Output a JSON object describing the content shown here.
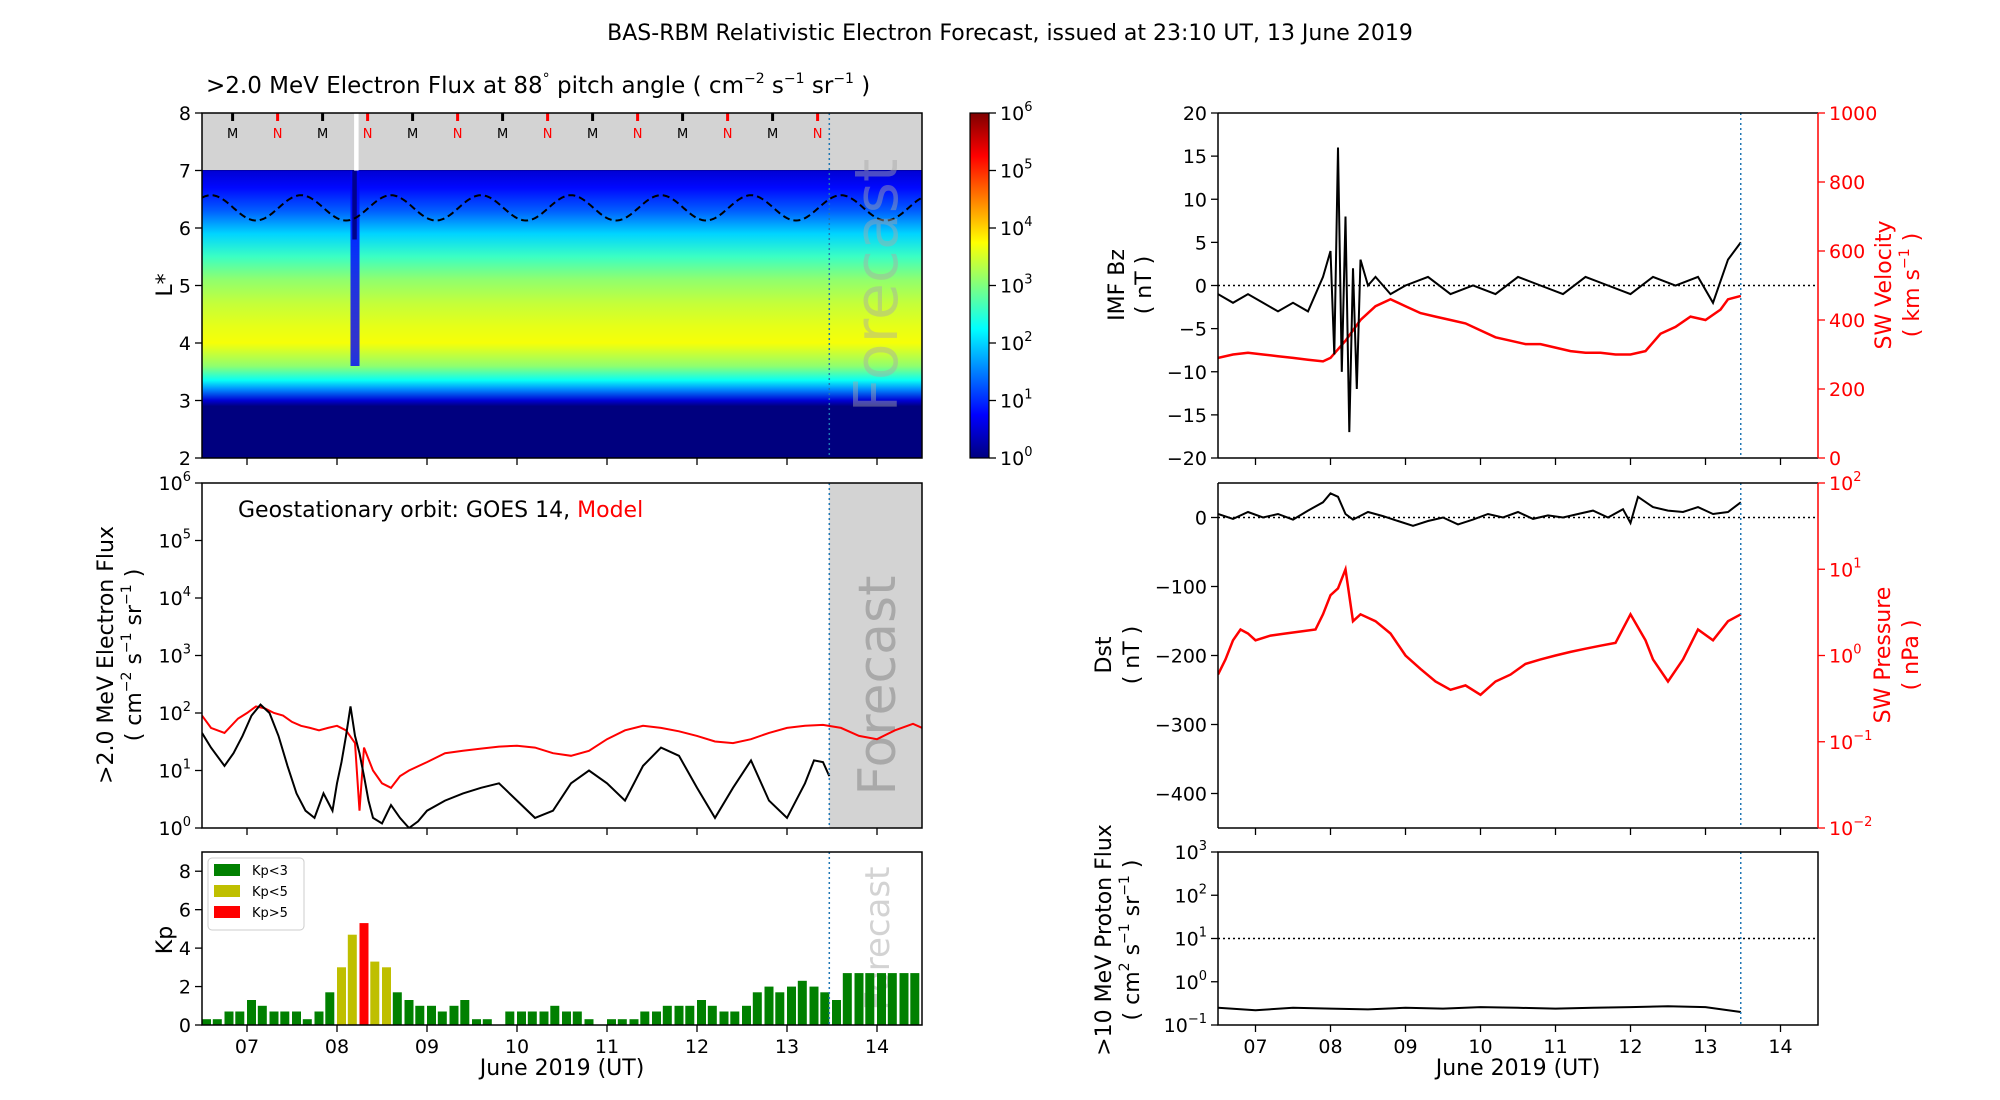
{
  "suptitle": "BAS-RBM Relativistic Electron Forecast, issued at 23:10 UT, 13 June 2019",
  "colors": {
    "black": "#000000",
    "red": "#ff0000",
    "forecast_grey": "#d3d3d3",
    "forecast_text": "#a9a9a9",
    "vline": "#1f77b4",
    "kp_low": "#008000",
    "kp_mid": "#bfbf00",
    "kp_high": "#ff0000"
  },
  "shared_x": {
    "range_days": [
      6.5,
      14.5
    ],
    "tick_labels": [
      "07",
      "08",
      "09",
      "10",
      "11",
      "12",
      "13",
      "14"
    ],
    "xlabel": "June 2019 (UT)",
    "forecast_start_day": 13.47
  },
  "chart_data": [
    {
      "id": "flux_heatmap",
      "type": "heatmap",
      "title": ">2.0 MeV Electron Flux at 88",
      "title_degree": "°",
      "title_units_open": "pitch angle ( cm",
      "title_units_exp1": "−2",
      "title_units_mid1": "s",
      "title_units_exp2": "−1",
      "title_units_mid2": "sr",
      "title_units_exp3": "−1",
      "title_units_close": ")",
      "ylabel": "L*",
      "ylim": [
        2,
        8
      ],
      "yticks": [
        "2",
        "3",
        "4",
        "5",
        "6",
        "7",
        "8"
      ],
      "forecast_label": "Forecast",
      "mlt_markers": [
        "M",
        "N",
        "M",
        "N",
        "M",
        "N",
        "M",
        "N",
        "M",
        "N",
        "M",
        "N",
        "M",
        "N"
      ],
      "dashed_line": {
        "mean_L": 6.35,
        "amplitude": 0.22,
        "period_days": 1
      },
      "colorbar": {
        "scale": "log",
        "range": [
          1,
          1000000
        ],
        "tick_mantissa": [
          "10",
          "10",
          "10",
          "10",
          "10",
          "10",
          "10"
        ],
        "tick_exponents": [
          "0",
          "1",
          "2",
          "3",
          "4",
          "5",
          "6"
        ]
      },
      "profile": {
        "L": [
          2.0,
          2.9,
          3.0,
          3.2,
          3.35,
          3.6,
          4.0,
          4.3,
          4.7,
          5.1,
          5.5,
          5.9,
          6.3,
          6.7,
          7.0
        ],
        "log_flux": [
          0.0,
          0.0,
          0.5,
          1.6,
          2.3,
          3.1,
          3.7,
          3.6,
          3.4,
          3.1,
          2.6,
          2.0,
          1.3,
          0.8,
          0.5
        ]
      }
    },
    {
      "id": "geo_flux",
      "type": "line",
      "ylabel_line1": ">2.0 MeV Electron Flux",
      "ylabel_line2_open": "( cm",
      "ylabel_exp1": "−2",
      "ylabel_mid1": "s",
      "ylabel_exp2": "−1",
      "ylabel_mid2": "sr",
      "ylabel_exp3": "−1",
      "ylabel_close": ")",
      "yscale": "log",
      "ylim": [
        1,
        1000000
      ],
      "ytick_mantissa": [
        "10",
        "10",
        "10",
        "10",
        "10",
        "10",
        "10"
      ],
      "ytick_exponents": [
        "0",
        "1",
        "2",
        "3",
        "4",
        "5",
        "6"
      ],
      "annotation_prefix": "Geostationary orbit:   GOES 14,",
      "annotation_model": "Model",
      "forecast_label": "Forecast",
      "series": [
        {
          "name": "GOES 14",
          "color": "#000000",
          "x": [
            6.5,
            6.6,
            6.75,
            6.85,
            6.95,
            7.05,
            7.15,
            7.25,
            7.35,
            7.45,
            7.55,
            7.65,
            7.75,
            7.85,
            7.95,
            8.0,
            8.05,
            8.1,
            8.15,
            8.2,
            8.25,
            8.3,
            8.35,
            8.4,
            8.5,
            8.6,
            8.7,
            8.8,
            8.9,
            9.0,
            9.2,
            9.4,
            9.6,
            9.8,
            10.0,
            10.2,
            10.4,
            10.6,
            10.8,
            11.0,
            11.2,
            11.4,
            11.6,
            11.8,
            12.0,
            12.2,
            12.4,
            12.6,
            12.8,
            13.0,
            13.2,
            13.3,
            13.4,
            13.47
          ],
          "y": [
            45,
            25,
            12,
            20,
            40,
            90,
            140,
            100,
            40,
            12,
            4,
            2,
            1.5,
            4,
            2,
            6,
            14,
            40,
            130,
            40,
            20,
            8,
            3,
            1.5,
            1.2,
            2.5,
            1.5,
            1,
            1.3,
            2,
            3,
            4,
            5,
            6,
            3,
            1.5,
            2,
            6,
            10,
            6,
            3,
            12,
            25,
            18,
            5,
            1.5,
            5,
            15,
            3,
            1.5,
            6,
            15,
            14,
            8
          ]
        },
        {
          "name": "Model",
          "color": "#ff0000",
          "x": [
            6.5,
            6.6,
            6.75,
            6.9,
            7.0,
            7.1,
            7.2,
            7.3,
            7.4,
            7.5,
            7.6,
            7.7,
            7.8,
            7.9,
            8.0,
            8.1,
            8.2,
            8.25,
            8.3,
            8.4,
            8.5,
            8.6,
            8.7,
            8.8,
            9.0,
            9.2,
            9.4,
            9.6,
            9.8,
            10.0,
            10.2,
            10.4,
            10.6,
            10.8,
            11.0,
            11.2,
            11.4,
            11.6,
            11.8,
            12.0,
            12.2,
            12.4,
            12.6,
            12.8,
            13.0,
            13.2,
            13.4,
            13.6,
            13.8,
            14.0,
            14.2,
            14.4,
            14.5
          ],
          "y": [
            90,
            55,
            45,
            80,
            100,
            130,
            120,
            100,
            90,
            70,
            60,
            55,
            50,
            55,
            60,
            50,
            30,
            2,
            25,
            10,
            6,
            5,
            8,
            10,
            14,
            20,
            22,
            24,
            26,
            27,
            25,
            20,
            18,
            22,
            35,
            50,
            60,
            55,
            48,
            40,
            32,
            30,
            35,
            45,
            55,
            60,
            62,
            55,
            40,
            35,
            50,
            65,
            55
          ]
        }
      ]
    },
    {
      "id": "kp",
      "type": "bar",
      "ylabel": "Kp",
      "ylim": [
        0,
        9
      ],
      "yticks": [
        "0",
        "2",
        "4",
        "6",
        "8"
      ],
      "forecast_label": "Forecast",
      "legend": [
        "Kp<3",
        "Kp<5",
        "Kp>5"
      ],
      "bar_width_days": 0.1,
      "x": [
        6.55,
        6.67,
        6.8,
        6.92,
        7.05,
        7.17,
        7.3,
        7.42,
        7.55,
        7.67,
        7.8,
        7.92,
        8.05,
        8.17,
        8.3,
        8.42,
        8.55,
        8.67,
        8.8,
        8.92,
        9.05,
        9.17,
        9.3,
        9.42,
        9.55,
        9.67,
        9.8,
        9.92,
        10.05,
        10.17,
        10.3,
        10.42,
        10.55,
        10.67,
        10.8,
        10.92,
        11.05,
        11.17,
        11.3,
        11.42,
        11.55,
        11.67,
        11.8,
        11.92,
        12.05,
        12.17,
        12.3,
        12.42,
        12.55,
        12.67,
        12.8,
        12.92,
        13.05,
        13.17,
        13.3,
        13.42,
        13.55,
        13.67,
        13.8,
        13.92,
        14.05,
        14.17,
        14.3,
        14.42
      ],
      "values": [
        0.3,
        0.3,
        0.7,
        0.7,
        1.3,
        1.0,
        0.7,
        0.7,
        0.7,
        0.3,
        0.7,
        1.7,
        3.0,
        4.7,
        5.3,
        3.3,
        3.0,
        1.7,
        1.3,
        1.0,
        1.0,
        0.7,
        1.0,
        1.3,
        0.3,
        0.3,
        0.0,
        0.7,
        0.7,
        0.7,
        0.7,
        1.0,
        0.7,
        0.7,
        0.3,
        0.0,
        0.3,
        0.3,
        0.3,
        0.7,
        0.7,
        1.0,
        1.0,
        1.0,
        1.3,
        1.0,
        0.7,
        0.7,
        1.0,
        1.7,
        2.0,
        1.7,
        2.0,
        2.3,
        2.0,
        1.7,
        1.3,
        2.7,
        2.7,
        2.7,
        2.7,
        2.7,
        2.7,
        2.7
      ]
    },
    {
      "id": "imf_sw",
      "type": "line",
      "ylabel_left_line1": "IMF Bz",
      "ylabel_left_line2": "( nT )",
      "ylim_left": [
        -20,
        20
      ],
      "yticks_left": [
        "−20",
        "−15",
        "−10",
        "−5",
        "0",
        "5",
        "10",
        "15",
        "20"
      ],
      "ylabel_right_line1": "SW Velocity",
      "ylabel_right_line2_open": "( km s",
      "ylabel_right_exp": "−1",
      "ylabel_right_close": ")",
      "ylim_right": [
        0,
        1000
      ],
      "yticks_right": [
        "0",
        "200",
        "400",
        "600",
        "800",
        "1000"
      ],
      "series": [
        {
          "name": "IMF Bz",
          "color": "#000000",
          "x": [
            6.5,
            6.7,
            6.9,
            7.1,
            7.3,
            7.5,
            7.7,
            7.9,
            8.0,
            8.05,
            8.1,
            8.15,
            8.2,
            8.25,
            8.3,
            8.35,
            8.4,
            8.5,
            8.6,
            8.8,
            9.0,
            9.3,
            9.6,
            9.9,
            10.2,
            10.5,
            10.8,
            11.1,
            11.4,
            11.7,
            12.0,
            12.3,
            12.6,
            12.9,
            13.1,
            13.3,
            13.47
          ],
          "y": [
            -1,
            -2,
            -1,
            -2,
            -3,
            -2,
            -3,
            1,
            4,
            -8,
            16,
            -10,
            8,
            -17,
            2,
            -12,
            3,
            0,
            1,
            -1,
            0,
            1,
            -1,
            0,
            -1,
            1,
            0,
            -1,
            1,
            0,
            -1,
            1,
            0,
            1,
            -2,
            3,
            5
          ]
        },
        {
          "name": "SW Velocity",
          "color": "#ff0000",
          "x": [
            6.5,
            6.7,
            6.9,
            7.1,
            7.3,
            7.5,
            7.7,
            7.9,
            8.0,
            8.2,
            8.4,
            8.6,
            8.8,
            9.0,
            9.2,
            9.4,
            9.6,
            9.8,
            10.0,
            10.2,
            10.4,
            10.6,
            10.8,
            11.0,
            11.2,
            11.4,
            11.6,
            11.8,
            12.0,
            12.2,
            12.4,
            12.6,
            12.8,
            13.0,
            13.2,
            13.3,
            13.47
          ],
          "y": [
            290,
            300,
            305,
            300,
            295,
            290,
            285,
            280,
            290,
            340,
            400,
            440,
            460,
            440,
            420,
            410,
            400,
            390,
            370,
            350,
            340,
            330,
            330,
            320,
            310,
            305,
            305,
            300,
            300,
            310,
            360,
            380,
            410,
            400,
            430,
            460,
            470
          ]
        }
      ]
    },
    {
      "id": "dst_pressure",
      "type": "line",
      "ylabel_left_line1": "Dst",
      "ylabel_left_line2": "( nT )",
      "ylim_left": [
        -450,
        50
      ],
      "yticks_left": [
        "−400",
        "−300",
        "−200",
        "−100",
        "0"
      ],
      "ylabel_right_line1": "SW Pressure",
      "ylabel_right_line2": "( nPa )",
      "yscale_right": "log",
      "ylim_right": [
        0.01,
        100
      ],
      "ytick_right_mantissa": [
        "10",
        "10",
        "10",
        "10",
        "10"
      ],
      "ytick_right_exponents": [
        "−2",
        "−1",
        "0",
        "1",
        "2"
      ],
      "series": [
        {
          "name": "Dst",
          "color": "#000000",
          "x": [
            6.5,
            6.7,
            6.9,
            7.1,
            7.3,
            7.5,
            7.7,
            7.9,
            8.0,
            8.1,
            8.2,
            8.3,
            8.5,
            8.7,
            8.9,
            9.1,
            9.3,
            9.5,
            9.7,
            9.9,
            10.1,
            10.3,
            10.5,
            10.7,
            10.9,
            11.1,
            11.3,
            11.5,
            11.7,
            11.9,
            12.0,
            12.1,
            12.3,
            12.5,
            12.7,
            12.9,
            13.1,
            13.3,
            13.47
          ],
          "y": [
            5,
            -2,
            8,
            0,
            5,
            -3,
            10,
            22,
            35,
            30,
            5,
            -3,
            8,
            2,
            -5,
            -12,
            -5,
            0,
            -10,
            -3,
            5,
            0,
            8,
            -2,
            3,
            0,
            5,
            10,
            0,
            12,
            -8,
            30,
            15,
            10,
            8,
            15,
            5,
            8,
            22
          ]
        },
        {
          "name": "SW Pressure",
          "color": "#ff0000",
          "x": [
            6.5,
            6.6,
            6.7,
            6.8,
            6.9,
            7.0,
            7.2,
            7.4,
            7.6,
            7.8,
            7.9,
            8.0,
            8.1,
            8.2,
            8.3,
            8.4,
            8.6,
            8.8,
            9.0,
            9.2,
            9.4,
            9.6,
            9.8,
            10.0,
            10.2,
            10.4,
            10.6,
            10.8,
            11.0,
            11.2,
            11.4,
            11.6,
            11.8,
            12.0,
            12.2,
            12.3,
            12.5,
            12.7,
            12.9,
            13.1,
            13.3,
            13.47
          ],
          "y": [
            0.6,
            0.9,
            1.5,
            2.0,
            1.8,
            1.5,
            1.7,
            1.8,
            1.9,
            2.0,
            3.0,
            5.0,
            6.0,
            10.0,
            2.5,
            3.0,
            2.5,
            1.8,
            1.0,
            0.7,
            0.5,
            0.4,
            0.45,
            0.35,
            0.5,
            0.6,
            0.8,
            0.9,
            1.0,
            1.1,
            1.2,
            1.3,
            1.4,
            3.0,
            1.5,
            0.9,
            0.5,
            0.9,
            2.0,
            1.5,
            2.5,
            3.0
          ]
        }
      ]
    },
    {
      "id": "proton_flux",
      "type": "line",
      "ylabel_line1": ">10 MeV Proton Flux",
      "ylabel_line2_open": "( cm",
      "ylabel_exp1": "2",
      "ylabel_mid1": "s",
      "ylabel_exp2": "−1",
      "ylabel_mid2": "sr",
      "ylabel_exp3": "−1",
      "ylabel_close": ")",
      "yscale": "log",
      "ylim": [
        0.1,
        1000
      ],
      "ytick_mantissa": [
        "10",
        "10",
        "10",
        "10",
        "10"
      ],
      "ytick_exponents": [
        "−1",
        "0",
        "1",
        "2",
        "3"
      ],
      "threshold": 10,
      "series": [
        {
          "name": "Proton flux",
          "color": "#000000",
          "x": [
            6.5,
            7.0,
            7.5,
            8.0,
            8.5,
            9.0,
            9.5,
            10.0,
            10.5,
            11.0,
            11.5,
            12.0,
            12.5,
            13.0,
            13.47
          ],
          "y": [
            0.25,
            0.22,
            0.25,
            0.24,
            0.23,
            0.25,
            0.24,
            0.26,
            0.25,
            0.24,
            0.25,
            0.26,
            0.27,
            0.26,
            0.2
          ]
        }
      ]
    }
  ]
}
